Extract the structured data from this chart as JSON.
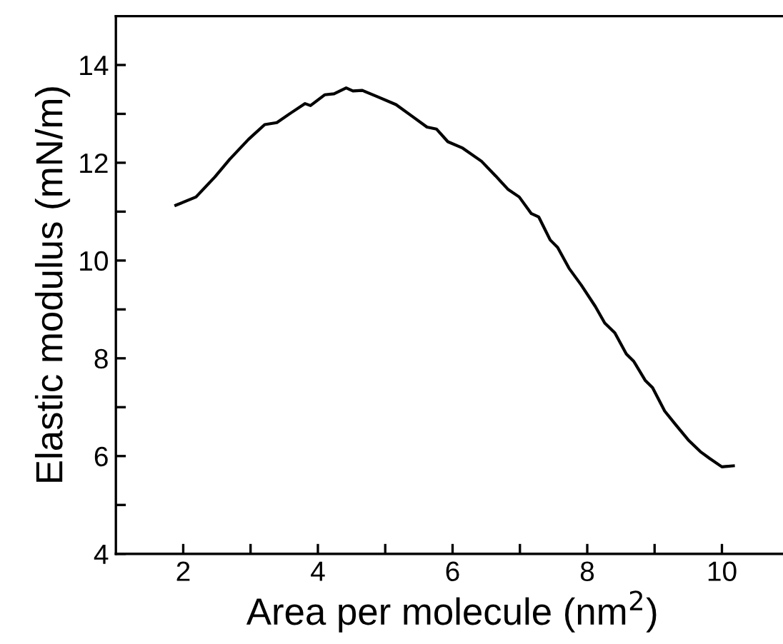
{
  "chart_data": {
    "type": "line",
    "xlabel": "Area per molecule (nm$^{2}$)",
    "ylabel": "Elastic modulus (mN/m)",
    "xlim": [
      1,
      11
    ],
    "ylim": [
      4,
      15
    ],
    "xticks": [
      2,
      {
        "value": 3,
        "label": null
      },
      4,
      {
        "value": 5,
        "label": null
      },
      6,
      {
        "value": 7,
        "label": null
      },
      8,
      {
        "value": 9,
        "label": null
      },
      10
    ],
    "yticks": [
      4,
      {
        "value": 5,
        "label": null
      },
      6,
      {
        "value": 7,
        "label": null
      },
      8,
      {
        "value": 9,
        "label": null
      },
      10,
      {
        "value": 11,
        "label": null
      },
      12,
      {
        "value": 13,
        "label": null
      },
      14
    ],
    "grid": false,
    "legend": false,
    "marker": "none",
    "line_style": "solid",
    "series": [
      {
        "color": "#000000",
        "x": [
          1.89,
          2.19,
          2.47,
          2.69,
          2.97,
          3.21,
          3.39,
          3.6,
          3.81,
          3.89,
          4.1,
          4.24,
          4.42,
          4.52,
          4.66,
          4.87,
          5.16,
          5.4,
          5.62,
          5.76,
          5.93,
          6.15,
          6.43,
          6.64,
          6.82,
          6.99,
          7.17,
          7.28,
          7.45,
          7.56,
          7.73,
          7.91,
          8.12,
          8.26,
          8.41,
          8.58,
          8.69,
          8.86,
          8.97,
          9.15,
          9.32,
          9.5,
          9.68,
          9.82,
          10.0,
          10.17
        ],
        "values": [
          11.13,
          11.3,
          11.71,
          12.07,
          12.48,
          12.78,
          12.82,
          13.02,
          13.21,
          13.17,
          13.39,
          13.41,
          13.53,
          13.47,
          13.48,
          13.36,
          13.19,
          12.95,
          12.73,
          12.69,
          12.43,
          12.3,
          12.03,
          11.73,
          11.46,
          11.3,
          10.96,
          10.89,
          10.42,
          10.27,
          9.84,
          9.5,
          9.06,
          8.72,
          8.52,
          8.09,
          7.94,
          7.55,
          7.4,
          6.92,
          6.63,
          6.33,
          6.09,
          5.95,
          5.78,
          5.8
        ]
      }
    ]
  }
}
